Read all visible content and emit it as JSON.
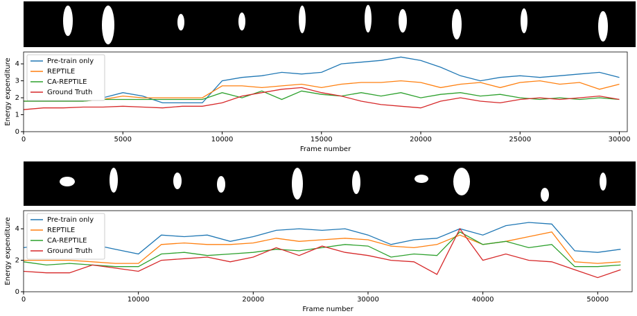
{
  "chart_data": [
    {
      "type": "line",
      "x_label": "Frame number",
      "y_label": "Energy expenditure",
      "x": [
        0,
        1000,
        2000,
        3000,
        4000,
        5000,
        6000,
        7000,
        8000,
        9000,
        10000,
        11000,
        12000,
        13000,
        14000,
        15000,
        16000,
        17000,
        18000,
        19000,
        20000,
        21000,
        22000,
        23000,
        24000,
        25000,
        26000,
        27000,
        28000,
        29000,
        30000
      ],
      "xlim": [
        0,
        30400
      ],
      "xticks": [
        0,
        5000,
        10000,
        15000,
        20000,
        25000,
        30000
      ],
      "ylim": [
        0,
        4.7
      ],
      "yticks": [
        0,
        1,
        2,
        3,
        4
      ],
      "legend": "upper left",
      "series": [
        {
          "name": "Pre-train only",
          "color": "#1f77b4",
          "values": [
            1.8,
            1.8,
            1.8,
            1.8,
            2.0,
            2.3,
            2.1,
            1.7,
            1.7,
            1.7,
            3.0,
            3.2,
            3.3,
            3.5,
            3.4,
            3.5,
            4.0,
            4.1,
            4.2,
            4.4,
            4.2,
            3.8,
            3.3,
            3.0,
            3.2,
            3.3,
            3.2,
            3.3,
            3.4,
            3.5,
            3.2
          ]
        },
        {
          "name": "REPTILE",
          "color": "#ff7f0e",
          "values": [
            1.8,
            1.8,
            1.8,
            1.8,
            1.9,
            2.1,
            2.0,
            2.0,
            2.0,
            2.0,
            2.7,
            2.7,
            2.6,
            2.7,
            2.8,
            2.6,
            2.8,
            2.9,
            2.9,
            3.0,
            2.9,
            2.6,
            2.8,
            2.9,
            2.6,
            2.9,
            3.0,
            2.8,
            2.9,
            2.5,
            2.8
          ]
        },
        {
          "name": "CA-REPTILE",
          "color": "#2ca02c",
          "values": [
            1.8,
            1.8,
            1.8,
            1.8,
            1.9,
            1.9,
            1.9,
            1.9,
            1.9,
            1.9,
            2.3,
            2.0,
            2.4,
            1.9,
            2.4,
            2.2,
            2.1,
            2.3,
            2.1,
            2.3,
            2.0,
            2.2,
            2.3,
            2.1,
            2.2,
            2.0,
            1.9,
            2.0,
            1.9,
            2.0,
            1.9
          ]
        },
        {
          "name": "Ground Truth",
          "color": "#d62728",
          "values": [
            1.3,
            1.4,
            1.4,
            1.45,
            1.45,
            1.5,
            1.45,
            1.4,
            1.5,
            1.5,
            1.7,
            2.1,
            2.3,
            2.5,
            2.6,
            2.3,
            2.1,
            1.8,
            1.6,
            1.5,
            1.4,
            1.8,
            2.0,
            1.8,
            1.7,
            1.9,
            2.0,
            1.9,
            2.0,
            2.1,
            1.9
          ]
        }
      ]
    },
    {
      "type": "line",
      "x_label": "Frame number",
      "y_label": "Energy expenditure",
      "x": [
        0,
        2000,
        4000,
        6000,
        8000,
        10000,
        12000,
        14000,
        16000,
        18000,
        20000,
        22000,
        24000,
        26000,
        28000,
        30000,
        32000,
        34000,
        36000,
        38000,
        40000,
        42000,
        44000,
        46000,
        48000,
        50000,
        52000
      ],
      "xlim": [
        0,
        53000
      ],
      "xticks": [
        0,
        10000,
        20000,
        30000,
        40000,
        50000
      ],
      "ylim": [
        0,
        5.15
      ],
      "yticks": [
        0,
        2,
        4
      ],
      "legend": "upper left",
      "series": [
        {
          "name": "Pre-train only",
          "color": "#1f77b4",
          "values": [
            2.8,
            3.0,
            2.9,
            3.0,
            2.7,
            2.4,
            3.6,
            3.5,
            3.6,
            3.2,
            3.5,
            3.9,
            4.0,
            3.9,
            4.0,
            3.6,
            3.0,
            3.3,
            3.4,
            4.0,
            3.6,
            4.2,
            4.4,
            4.3,
            2.6,
            2.5,
            2.7
          ]
        },
        {
          "name": "REPTILE",
          "color": "#ff7f0e",
          "values": [
            2.0,
            2.0,
            2.0,
            1.9,
            1.8,
            1.8,
            3.0,
            3.1,
            3.0,
            3.0,
            3.1,
            3.4,
            3.2,
            3.3,
            3.4,
            3.3,
            2.9,
            2.8,
            3.0,
            3.6,
            3.0,
            3.2,
            3.5,
            3.8,
            1.9,
            1.8,
            1.9
          ]
        },
        {
          "name": "CA-REPTILE",
          "color": "#2ca02c",
          "values": [
            1.9,
            1.7,
            1.8,
            1.7,
            1.6,
            1.6,
            2.4,
            2.5,
            2.3,
            2.4,
            2.5,
            2.7,
            2.6,
            2.8,
            3.0,
            2.9,
            2.2,
            2.4,
            2.3,
            3.8,
            3.0,
            3.2,
            2.8,
            3.0,
            1.6,
            1.6,
            1.7
          ]
        },
        {
          "name": "Ground Truth",
          "color": "#d62728",
          "values": [
            1.3,
            1.2,
            1.2,
            1.7,
            1.5,
            1.3,
            2.0,
            2.1,
            2.2,
            1.9,
            2.2,
            2.8,
            2.3,
            2.9,
            2.5,
            2.3,
            2.0,
            1.9,
            1.1,
            4.0,
            2.0,
            2.4,
            2.0,
            1.9,
            1.4,
            0.9,
            1.4
          ]
        }
      ]
    }
  ]
}
